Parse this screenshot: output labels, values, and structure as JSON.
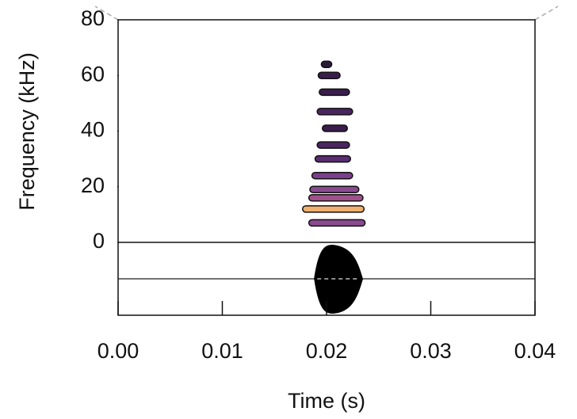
{
  "chart_data": {
    "type": "spectrogram",
    "x_label": "Time (s)",
    "y_label": "Frequency (kHz)",
    "xlim": [
      0,
      0.04
    ],
    "ylim": [
      0,
      80
    ],
    "xticks": [
      {
        "value": 0,
        "label": "0.00"
      },
      {
        "value": 0.01,
        "label": "0.01"
      },
      {
        "value": 0.02,
        "label": "0.02"
      },
      {
        "value": 0.03,
        "label": "0.03"
      },
      {
        "value": 0.04,
        "label": "0.04"
      }
    ],
    "yticks": [
      0,
      20,
      40,
      60,
      80
    ],
    "bands": [
      {
        "freq": 64,
        "start": 0.0195,
        "end": 0.0205,
        "color": "#2a1a3a"
      },
      {
        "freq": 60,
        "start": 0.0192,
        "end": 0.0213,
        "color": "#3a1d4d"
      },
      {
        "freq": 54,
        "start": 0.0193,
        "end": 0.0222,
        "color": "#3a1d4d"
      },
      {
        "freq": 47,
        "start": 0.0191,
        "end": 0.0225,
        "color": "#4a2560"
      },
      {
        "freq": 41,
        "start": 0.0196,
        "end": 0.022,
        "color": "#3a1d4d"
      },
      {
        "freq": 35,
        "start": 0.0191,
        "end": 0.0222,
        "color": "#4a2560"
      },
      {
        "freq": 30,
        "start": 0.0189,
        "end": 0.0223,
        "color": "#5a2d70"
      },
      {
        "freq": 24,
        "start": 0.0186,
        "end": 0.0225,
        "color": "#7a3f8a"
      },
      {
        "freq": 19,
        "start": 0.0184,
        "end": 0.0231,
        "color": "#8a4a90"
      },
      {
        "freq": 16,
        "start": 0.0183,
        "end": 0.0235,
        "color": "#a0508a"
      },
      {
        "freq": 12,
        "start": 0.0177,
        "end": 0.0236,
        "color": "#f0b070"
      },
      {
        "freq": 7,
        "start": 0.0183,
        "end": 0.0237,
        "color": "#8a4a90"
      }
    ],
    "waveform": {
      "start": 0.0188,
      "end": 0.0235,
      "color": "#000000"
    }
  }
}
